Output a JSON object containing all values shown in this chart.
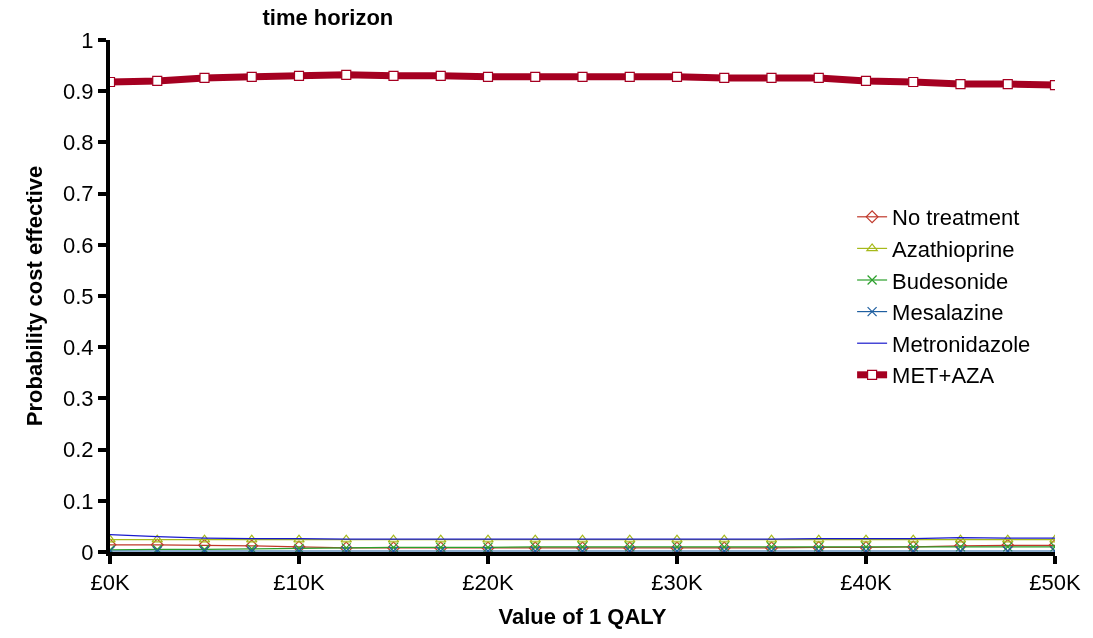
{
  "chart_data": {
    "type": "line",
    "title": "time horizon",
    "xlabel": "Value of 1 QALY",
    "ylabel": "Probability cost effective",
    "x": [
      0,
      2500,
      5000,
      7500,
      10000,
      12500,
      15000,
      17500,
      20000,
      22500,
      25000,
      27500,
      30000,
      32500,
      35000,
      37500,
      40000,
      42500,
      45000,
      47500,
      50000
    ],
    "xlim": [
      0,
      50000
    ],
    "xticks": [
      {
        "value": 0,
        "label": "£0K"
      },
      {
        "value": 10000,
        "label": "£10K"
      },
      {
        "value": 20000,
        "label": "£20K"
      },
      {
        "value": 30000,
        "label": "£30K"
      },
      {
        "value": 40000,
        "label": "£40K"
      },
      {
        "value": 50000,
        "label": "£50K"
      }
    ],
    "ylim": [
      0,
      1
    ],
    "yticks": [
      0,
      0.1,
      0.2,
      0.3,
      0.4,
      0.5,
      0.6,
      0.7,
      0.8,
      0.9,
      1
    ],
    "legend": "right",
    "line_style": "solid",
    "series": [
      {
        "name": "No treatment",
        "color": "#c0392b",
        "marker": "diamond",
        "values": [
          0.014,
          0.014,
          0.013,
          0.012,
          0.01,
          0.008,
          0.008,
          0.008,
          0.008,
          0.008,
          0.008,
          0.008,
          0.008,
          0.008,
          0.008,
          0.009,
          0.009,
          0.01,
          0.012,
          0.013,
          0.013
        ]
      },
      {
        "name": "Azathioprine",
        "color": "#a6b91a",
        "marker": "triangle",
        "values": [
          0.024,
          0.024,
          0.024,
          0.024,
          0.024,
          0.024,
          0.024,
          0.024,
          0.024,
          0.024,
          0.024,
          0.024,
          0.024,
          0.024,
          0.024,
          0.024,
          0.024,
          0.024,
          0.024,
          0.024,
          0.024
        ]
      },
      {
        "name": "Budesonide",
        "color": "#2ca02c",
        "marker": "cross",
        "values": [
          0.004,
          0.005,
          0.005,
          0.006,
          0.007,
          0.008,
          0.009,
          0.009,
          0.009,
          0.01,
          0.01,
          0.01,
          0.01,
          0.01,
          0.01,
          0.01,
          0.01,
          0.01,
          0.01,
          0.01,
          0.01
        ]
      },
      {
        "name": "Mesalazine",
        "color": "#1f5fa0",
        "marker": "cross",
        "values": [
          0.002,
          0.002,
          0.002,
          0.002,
          0.002,
          0.002,
          0.002,
          0.002,
          0.002,
          0.002,
          0.002,
          0.002,
          0.002,
          0.002,
          0.002,
          0.002,
          0.002,
          0.002,
          0.002,
          0.002,
          0.002
        ]
      },
      {
        "name": "Metronidazole",
        "color": "#1a1acc",
        "marker": "none",
        "values": [
          0.034,
          0.03,
          0.027,
          0.026,
          0.026,
          0.025,
          0.025,
          0.025,
          0.025,
          0.025,
          0.025,
          0.025,
          0.025,
          0.025,
          0.025,
          0.026,
          0.026,
          0.026,
          0.028,
          0.027,
          0.027
        ]
      },
      {
        "name": "MET+AZA",
        "color": "#a50021",
        "marker": "square",
        "values": [
          0.918,
          0.92,
          0.926,
          0.928,
          0.93,
          0.932,
          0.93,
          0.93,
          0.928,
          0.928,
          0.928,
          0.928,
          0.928,
          0.926,
          0.926,
          0.926,
          0.92,
          0.918,
          0.914,
          0.914,
          0.912
        ]
      }
    ]
  }
}
